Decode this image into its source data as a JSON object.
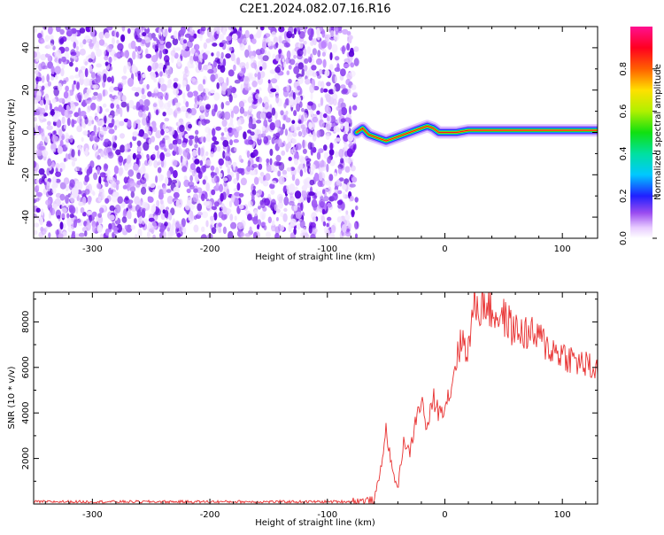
{
  "title": "C2E1.2024.082.07.16.R16",
  "chart_data": [
    {
      "type": "heatmap",
      "xlabel": "Height of straight line (km)",
      "ylabel": "Frequency (Hz)",
      "xlim": [
        -350,
        130
      ],
      "ylim": [
        -50,
        50
      ],
      "xticks": [
        -300,
        -200,
        -100,
        0,
        100
      ],
      "xtick_labels": [
        "-300",
        "-200",
        "-100",
        "0",
        "100"
      ],
      "yticks": [
        -40,
        -20,
        0,
        20,
        40
      ],
      "ytick_labels": [
        "-40",
        "-20",
        "0",
        "20",
        "40"
      ],
      "noise_region_x": [
        -350,
        -75
      ],
      "signal_trace": {
        "x": [
          -75,
          -70,
          -65,
          -60,
          -55,
          -50,
          -45,
          -40,
          -35,
          -30,
          -25,
          -20,
          -15,
          -10,
          -5,
          0,
          10,
          20,
          40,
          60,
          80,
          90,
          100,
          110,
          120,
          130
        ],
        "freq": [
          0,
          2,
          -1,
          -2,
          -3,
          -4,
          -3,
          -2,
          -1,
          0,
          1,
          2,
          3,
          2,
          0,
          0,
          0,
          1,
          1,
          1,
          1,
          1,
          1,
          1,
          1,
          1
        ]
      },
      "colorbar": {
        "label": "Normalized spectral amplitude",
        "range": [
          0,
          1
        ],
        "ticks": [
          0.0,
          0.2,
          0.4,
          0.6,
          0.8
        ],
        "tick_labels": [
          "0.0",
          "0.2",
          "0.4",
          "0.6",
          "0.8"
        ],
        "colormap": "gist_ncar-like (white-violet-blue-cyan-green-yellow-red-magenta)"
      },
      "grid": false
    },
    {
      "type": "line",
      "xlabel": "Height of straight line (km)",
      "ylabel": "SNR (10 * v/v)",
      "xlim": [
        -350,
        130
      ],
      "ylim": [
        0,
        9300
      ],
      "xticks": [
        -300,
        -200,
        -100,
        0,
        100
      ],
      "xtick_labels": [
        "-300",
        "-200",
        "-100",
        "0",
        "100"
      ],
      "yticks": [
        2000,
        4000,
        6000,
        8000
      ],
      "ytick_labels": [
        "2000",
        "4000",
        "6000",
        "8000"
      ],
      "line_color": "#e83030",
      "series": [
        {
          "x": [
            -350,
            -300,
            -250,
            -200,
            -150,
            -100,
            -80,
            -60,
            -55,
            -50,
            -45,
            -40,
            -35,
            -30,
            -25,
            -20,
            -15,
            -10,
            -5,
            0,
            5,
            10,
            15,
            20,
            25,
            30,
            35,
            40,
            50,
            60,
            70,
            80,
            90,
            100,
            110,
            120,
            130
          ],
          "values": [
            100,
            100,
            100,
            100,
            100,
            100,
            110,
            150,
            1400,
            3300,
            1500,
            700,
            2800,
            2200,
            3600,
            4600,
            3200,
            4700,
            4000,
            4400,
            5000,
            6500,
            7200,
            6800,
            8800,
            8600,
            8900,
            8400,
            8200,
            7600,
            7500,
            7300,
            6800,
            6600,
            6300,
            6100,
            5800
          ]
        }
      ],
      "grid": false
    }
  ]
}
